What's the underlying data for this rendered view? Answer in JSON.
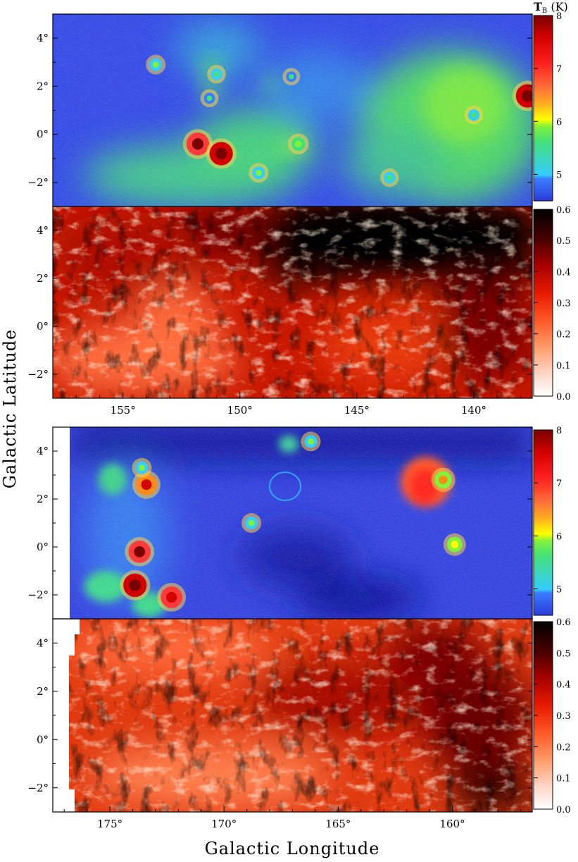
{
  "figure": {
    "xlabel": "Galactic Longitude",
    "ylabel": "Galactic Latitude",
    "colorbar_unit_main": "T",
    "colorbar_unit_sub": "B",
    "colorbar_unit_tail": " (K)",
    "degree_symbol": "°"
  },
  "chart_data": [
    {
      "type": "heatmap",
      "id": "top-brightness",
      "quantity": "brightness temperature",
      "xlim": [
        158,
        137.5
      ],
      "ylim": [
        -3,
        5
      ],
      "xticks": [],
      "yticks": [
        4,
        2,
        0,
        -2
      ],
      "ytick_labels": [
        "4°",
        "2°",
        "0°",
        "−2°"
      ],
      "colorbar": {
        "range": [
          4.5,
          8
        ],
        "ticks": [
          5,
          6,
          7,
          8
        ],
        "tick_labels": [
          "5",
          "6",
          "7",
          "8"
        ],
        "colors": [
          "#2a3bd8",
          "#3a7cff",
          "#33ccff",
          "#44e07a",
          "#7ff23a",
          "#ffff00",
          "#ff8c1a",
          "#ff3a3a",
          "#d40000",
          "#7a0000"
        ]
      },
      "sources": [
        {
          "l": 151.8,
          "b": -0.4,
          "value": 7.8
        },
        {
          "l": 150.8,
          "b": -0.8,
          "value": 7.9
        },
        {
          "l": 149.2,
          "b": -1.6,
          "value": 6.0
        },
        {
          "l": 147.5,
          "b": -0.4,
          "value": 6.2
        },
        {
          "l": 153.6,
          "b": 2.9,
          "value": 6.0
        },
        {
          "l": 151.0,
          "b": 2.5,
          "value": 5.8
        },
        {
          "l": 151.3,
          "b": 1.5,
          "value": 5.7
        },
        {
          "l": 147.8,
          "b": 2.4,
          "value": 5.6
        },
        {
          "l": 137.7,
          "b": 1.6,
          "value": 7.9
        },
        {
          "l": 140.0,
          "b": 0.8,
          "value": 5.8
        },
        {
          "l": 143.6,
          "b": -1.8,
          "value": 5.8
        }
      ]
    },
    {
      "type": "heatmap",
      "id": "top-ratio",
      "xlim": [
        158,
        137.5
      ],
      "ylim": [
        -3,
        5
      ],
      "xticks": [
        155,
        150,
        145,
        140
      ],
      "xtick_labels": [
        "155°",
        "150°",
        "145°",
        "140°"
      ],
      "yticks": [
        4,
        2,
        0,
        -2
      ],
      "ytick_labels": [
        "4°",
        "2°",
        "0°",
        "−2°"
      ],
      "colorbar": {
        "range": [
          0.0,
          0.6
        ],
        "ticks": [
          0.0,
          0.1,
          0.2,
          0.3,
          0.4,
          0.5,
          0.6
        ],
        "tick_labels": [
          "0.0",
          "0.1",
          "0.2",
          "0.3",
          "0.4",
          "0.5",
          "0.6"
        ],
        "colors": [
          "#ffffff",
          "#ffc8b8",
          "#ff9a6a",
          "#ff5a2a",
          "#e81a00",
          "#a80000",
          "#5a0000",
          "#000000"
        ]
      }
    },
    {
      "type": "heatmap",
      "id": "bottom-brightness",
      "quantity": "brightness temperature",
      "xlim": [
        177.5,
        156.5
      ],
      "ylim": [
        -3,
        5
      ],
      "xticks": [],
      "yticks": [
        4,
        2,
        0,
        -2
      ],
      "ytick_labels": [
        "4°",
        "2°",
        "0°",
        "−2°"
      ],
      "colorbar": {
        "range": [
          4.5,
          8
        ],
        "ticks": [
          5,
          6,
          7,
          8
        ],
        "tick_labels": [
          "5",
          "6",
          "7",
          "8"
        ],
        "colors": [
          "#2a3bd8",
          "#3a7cff",
          "#33ccff",
          "#44e07a",
          "#7ff23a",
          "#ffff00",
          "#ff8c1a",
          "#ff3a3a",
          "#d40000",
          "#7a0000"
        ]
      },
      "sources": [
        {
          "l": 173.9,
          "b": -1.6,
          "value": 7.9
        },
        {
          "l": 172.3,
          "b": -2.1,
          "value": 7.6
        },
        {
          "l": 173.7,
          "b": -0.2,
          "value": 7.7
        },
        {
          "l": 173.4,
          "b": 2.6,
          "value": 7.5
        },
        {
          "l": 173.6,
          "b": 3.3,
          "value": 6.0
        },
        {
          "l": 166.2,
          "b": 4.4,
          "value": 6.0
        },
        {
          "l": 168.8,
          "b": 1.0,
          "value": 6.0
        },
        {
          "l": 160.4,
          "b": 2.8,
          "value": 6.8
        },
        {
          "l": 159.9,
          "b": 0.1,
          "value": 6.5
        }
      ]
    },
    {
      "type": "heatmap",
      "id": "bottom-ratio",
      "xlim": [
        177.5,
        156.5
      ],
      "ylim": [
        -3,
        5
      ],
      "xticks": [
        175,
        170,
        165,
        160
      ],
      "xtick_labels": [
        "175°",
        "170°",
        "165°",
        "160°"
      ],
      "yticks": [
        4,
        2,
        0,
        -2
      ],
      "ytick_labels": [
        "4°",
        "2°",
        "0°",
        "−2°"
      ],
      "colorbar": {
        "range": [
          0.0,
          0.6
        ],
        "ticks": [
          0.0,
          0.1,
          0.2,
          0.3,
          0.4,
          0.5,
          0.6
        ],
        "tick_labels": [
          "0.0",
          "0.1",
          "0.2",
          "0.3",
          "0.4",
          "0.5",
          "0.6"
        ],
        "colors": [
          "#ffffff",
          "#ffc8b8",
          "#ff9a6a",
          "#ff5a2a",
          "#e81a00",
          "#a80000",
          "#5a0000",
          "#000000"
        ]
      }
    }
  ]
}
